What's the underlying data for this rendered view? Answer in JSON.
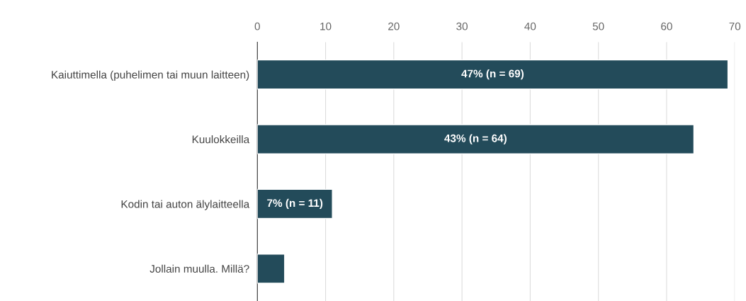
{
  "chart_data": {
    "type": "bar",
    "orientation": "horizontal",
    "categories": [
      "Kaiuttimella (puhelimen tai muun laitteen)",
      "Kuulokkeilla",
      "Kodin tai auton älylaitteella",
      "Jollain muulla. Millä?"
    ],
    "values": [
      69,
      64,
      11,
      4
    ],
    "value_labels": [
      "47% (n = 69)",
      "43% (n = 64)",
      "7% (n = 11)",
      null
    ],
    "color": "#234b5a",
    "xlim": [
      0,
      70
    ],
    "xticks": [
      0,
      10,
      20,
      30,
      40,
      50,
      60,
      70
    ],
    "grid": "x"
  }
}
